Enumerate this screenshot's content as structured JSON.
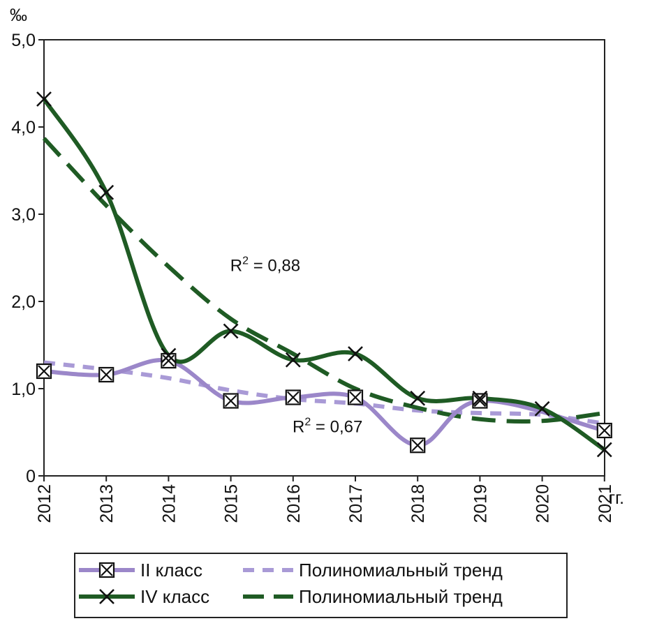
{
  "chart_data": {
    "type": "line",
    "ylabel": "‰",
    "xlabel": "гг.",
    "ylim": [
      0,
      5
    ],
    "yticks": [
      "0",
      "1,0",
      "2,0",
      "3,0",
      "4,0",
      "5,0"
    ],
    "x": [
      "2012",
      "2013",
      "2014",
      "2015",
      "2016",
      "2017",
      "2018",
      "2019",
      "2020",
      "2021"
    ],
    "grid": false,
    "legend_position": "bottom",
    "series": [
      {
        "name": "II класс",
        "color": "#9b87c9",
        "marker": "boxed-x",
        "values": [
          1.2,
          1.16,
          1.32,
          0.86,
          0.9,
          0.9,
          0.35,
          0.86,
          null,
          0.52
        ]
      },
      {
        "name": "IV класс",
        "color": "#1f5b24",
        "marker": "x",
        "values": [
          4.32,
          3.25,
          1.38,
          1.66,
          1.33,
          1.4,
          0.89,
          0.89,
          0.77,
          0.3
        ]
      }
    ],
    "trends": [
      {
        "name": "Полиномиальный тренд",
        "color": "#a99ad6",
        "values": [
          1.3,
          1.22,
          1.12,
          0.98,
          0.88,
          0.83,
          0.75,
          0.72,
          0.7,
          0.6
        ]
      },
      {
        "name": "Полиномиальный тренд",
        "color": "#1f5b24",
        "values": [
          3.87,
          3.1,
          2.4,
          1.8,
          1.4,
          1.0,
          0.78,
          0.65,
          0.63,
          0.72
        ]
      }
    ],
    "annotations": [
      {
        "text_main": "R",
        "text_sup": "2",
        "text_rest": " = 0,88",
        "x": "2016",
        "y": 2.35
      },
      {
        "text_main": "R",
        "text_sup": "2",
        "text_rest": " = 0,67",
        "x": "2017",
        "y": 0.5
      }
    ]
  }
}
